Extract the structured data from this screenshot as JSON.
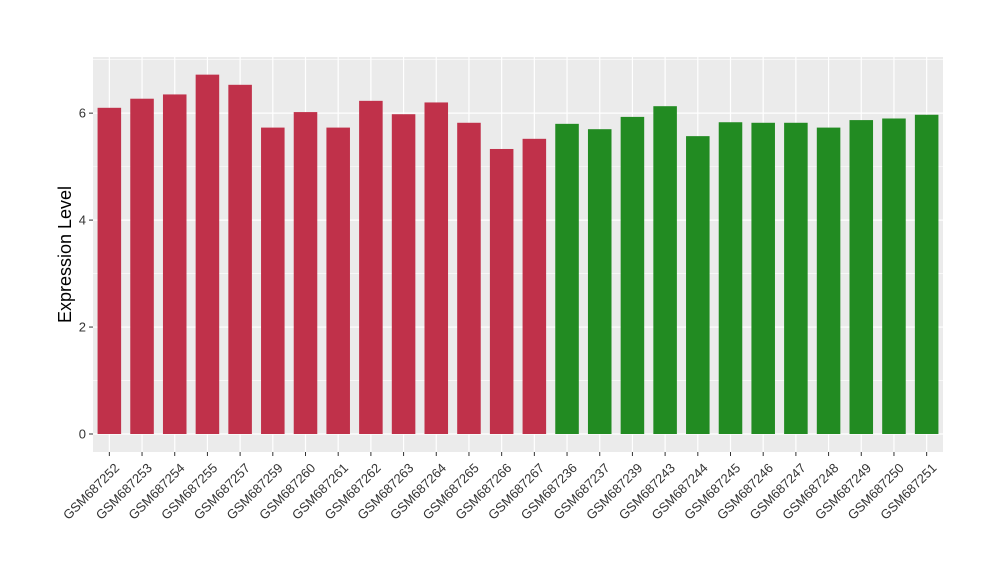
{
  "chart_data": {
    "type": "bar",
    "title": "",
    "xlabel": "",
    "ylabel": "Expression Level",
    "ylim": [
      0,
      7.05
    ],
    "yticks": [
      0,
      2,
      4,
      6
    ],
    "ytick_labels": [
      "0",
      "2",
      "4",
      "6"
    ],
    "grid": true,
    "legend": "none",
    "categories": [
      "GSM687252",
      "GSM687253",
      "GSM687254",
      "GSM687255",
      "GSM687257",
      "GSM687259",
      "GSM687260",
      "GSM687261",
      "GSM687262",
      "GSM687263",
      "GSM687264",
      "GSM687265",
      "GSM687266",
      "GSM687267",
      "GSM687236",
      "GSM687237",
      "GSM687239",
      "GSM687243",
      "GSM687244",
      "GSM687245",
      "GSM687246",
      "GSM687247",
      "GSM687248",
      "GSM687249",
      "GSM687250",
      "GSM687251"
    ],
    "values": [
      6.1,
      6.27,
      6.35,
      6.72,
      6.53,
      5.73,
      6.02,
      5.73,
      6.23,
      5.98,
      6.2,
      5.82,
      5.33,
      5.52,
      5.8,
      5.7,
      5.93,
      6.13,
      5.57,
      5.83,
      5.82,
      5.82,
      5.73,
      5.87,
      5.9,
      5.97
    ],
    "groups": [
      "a",
      "a",
      "a",
      "a",
      "a",
      "a",
      "a",
      "a",
      "a",
      "a",
      "a",
      "a",
      "a",
      "a",
      "b",
      "b",
      "b",
      "b",
      "b",
      "b",
      "b",
      "b",
      "b",
      "b",
      "b",
      "b"
    ],
    "colors": {
      "a": "#c0314a",
      "b": "#228b22",
      "panel": "#ebebeb",
      "grid": "#ffffff"
    }
  }
}
